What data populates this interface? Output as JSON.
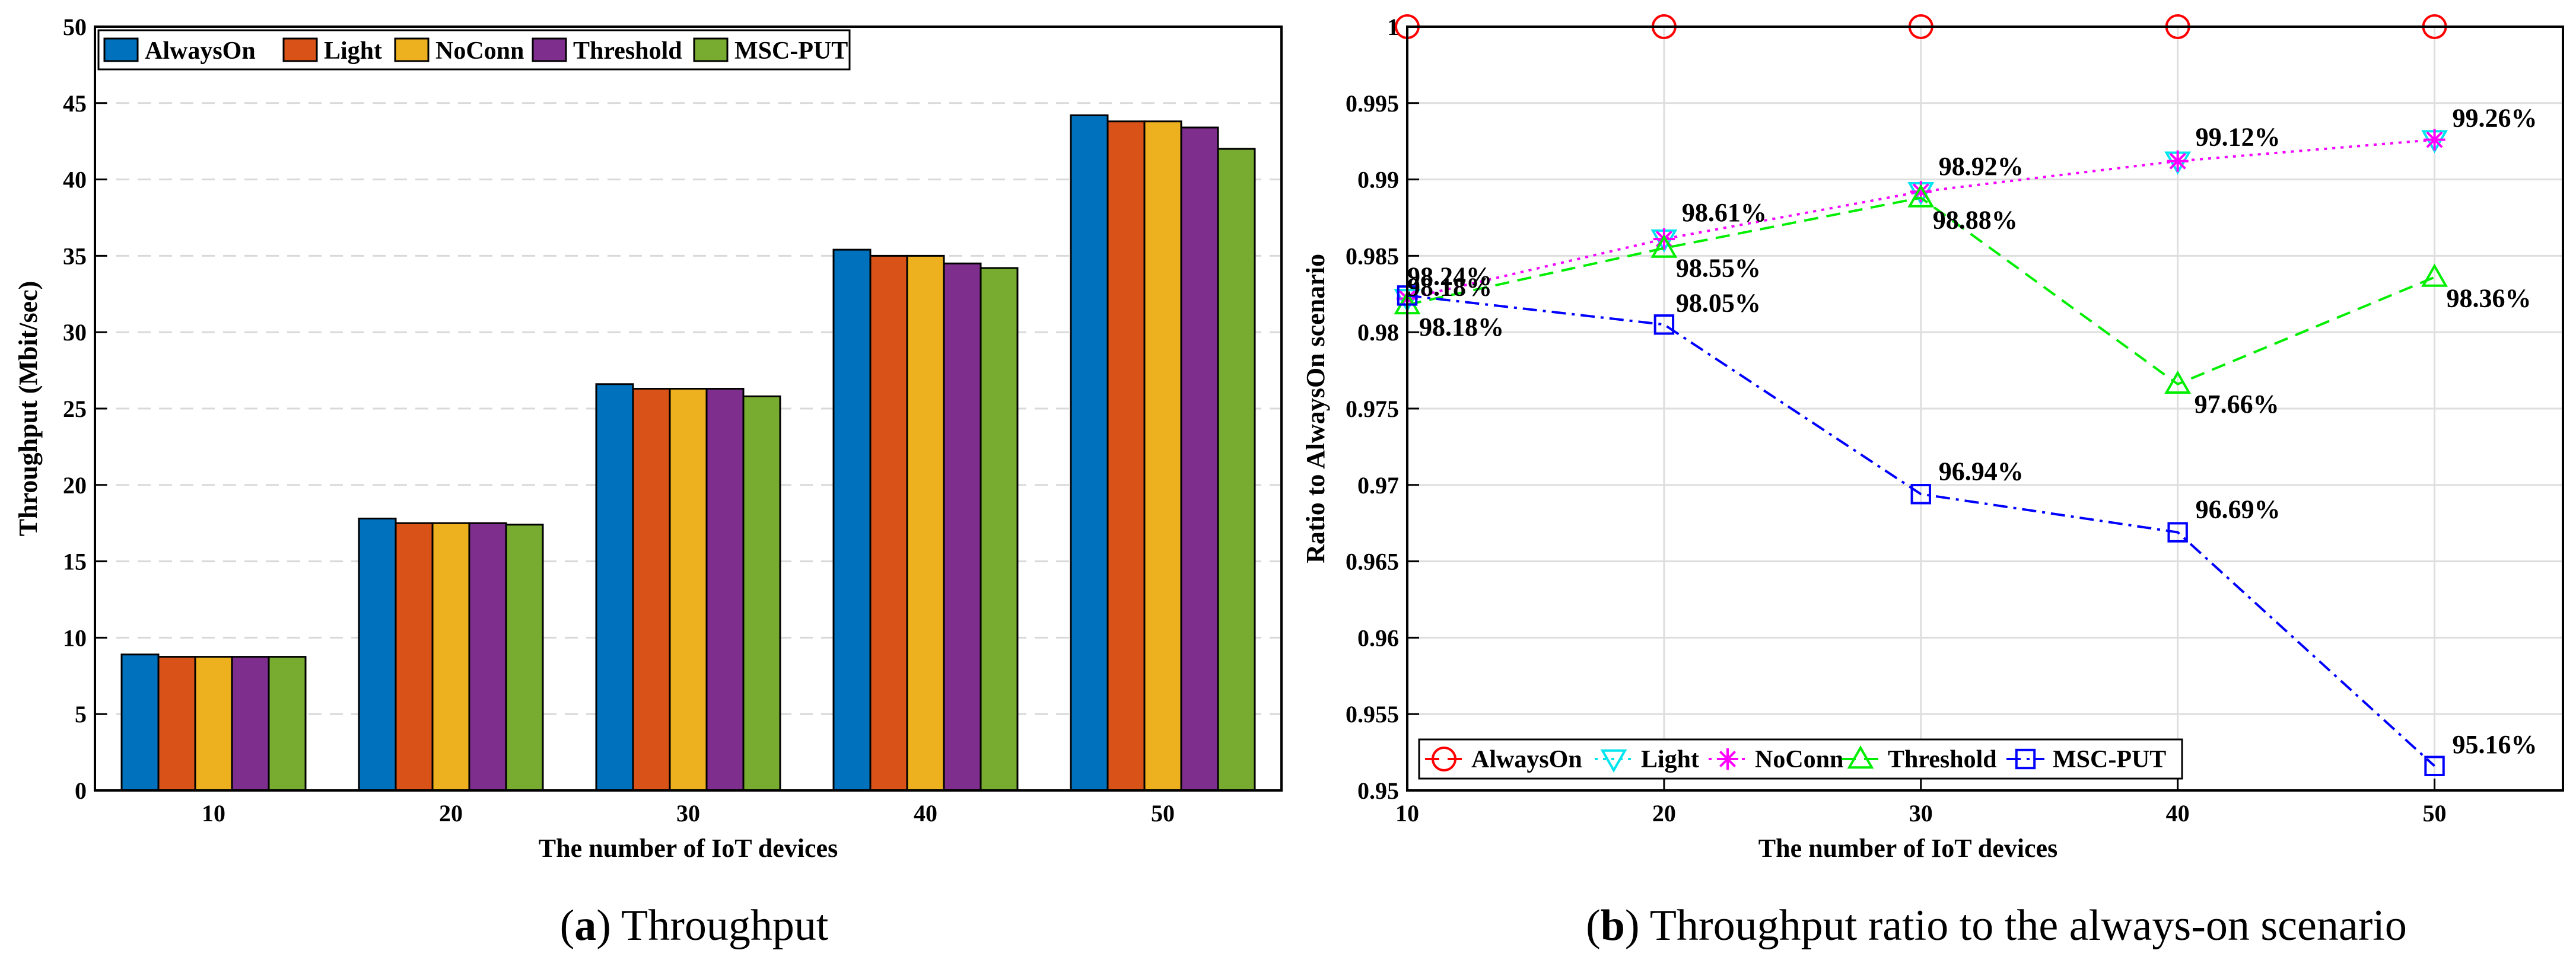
{
  "chart_data": [
    {
      "type": "bar",
      "title": "",
      "caption": {
        "prefix": "(",
        "letter": "a",
        "suffix": ") Throughput"
      },
      "xlabel": "The number of IoT devices",
      "ylabel": "Throughput (Mbit/sec)",
      "categories": [
        "10",
        "20",
        "30",
        "40",
        "50"
      ],
      "ylim": [
        0,
        50
      ],
      "yticks": [
        "0",
        "5",
        "10",
        "15",
        "20",
        "25",
        "30",
        "35",
        "40",
        "45",
        "50"
      ],
      "grid": "horizontal dashed",
      "legend_position": "top-left",
      "series": [
        {
          "name": "AlwaysOn",
          "color": "#0072BD",
          "values": [
            8.9,
            17.8,
            26.6,
            35.4,
            44.2
          ]
        },
        {
          "name": "Light",
          "color": "#D95319",
          "values": [
            8.75,
            17.5,
            26.3,
            35.0,
            43.8
          ]
        },
        {
          "name": "NoConn",
          "color": "#EDB120",
          "values": [
            8.75,
            17.5,
            26.3,
            35.0,
            43.8
          ]
        },
        {
          "name": "Threshold",
          "color": "#7E2F8E",
          "values": [
            8.75,
            17.5,
            26.3,
            34.5,
            43.4
          ]
        },
        {
          "name": "MSC-PUT",
          "color": "#77AC30",
          "values": [
            8.75,
            17.4,
            25.8,
            34.2,
            42.0
          ]
        }
      ]
    },
    {
      "type": "line",
      "title": "",
      "caption": {
        "prefix": "(",
        "letter": "b",
        "suffix": ") Throughput ratio to the always-on scenario"
      },
      "xlabel": "The number of IoT devices",
      "ylabel": "Ratio to AlwaysOn scenario",
      "x": [
        10,
        20,
        30,
        40,
        50
      ],
      "xlim": [
        10,
        55
      ],
      "xticks": [
        "10",
        "20",
        "30",
        "40",
        "50"
      ],
      "ylim": [
        0.95,
        1.0
      ],
      "yticks": [
        "0.95",
        "0.955",
        "0.96",
        "0.965",
        "0.97",
        "0.975",
        "0.98",
        "0.985",
        "0.99",
        "0.995",
        "1"
      ],
      "grid": "both",
      "legend_position": "bottom-left",
      "series": [
        {
          "name": "AlwaysOn",
          "color": "#FF0000",
          "marker": "circle",
          "line": "dashed",
          "values": [
            1.0,
            1.0,
            1.0,
            1.0,
            1.0
          ]
        },
        {
          "name": "Light",
          "color": "#00E5EE",
          "marker": "triangle-down",
          "line": "dotted",
          "values": [
            0.9822,
            0.9861,
            0.9892,
            0.9912,
            0.9926
          ]
        },
        {
          "name": "NoConn",
          "color": "#FF00FF",
          "marker": "asterisk",
          "line": "dotted",
          "values": [
            0.9822,
            0.9861,
            0.9892,
            0.9912,
            0.9926
          ]
        },
        {
          "name": "Threshold",
          "color": "#00EE00",
          "marker": "triangle-up",
          "line": "dashed",
          "values": [
            0.9818,
            0.9855,
            0.9888,
            0.9766,
            0.9836
          ]
        },
        {
          "name": "MSC-PUT",
          "color": "#0000FF",
          "marker": "square",
          "line": "dash-dot",
          "values": [
            0.9824,
            0.9805,
            0.9694,
            0.9669,
            0.9516
          ]
        }
      ],
      "annotations": [
        {
          "text": "98.24%",
          "x": 10,
          "y": 0.9824
        },
        {
          "text": "98.18%",
          "x": 10,
          "y": 0.9824
        },
        {
          "text": "98.18%",
          "x": 10,
          "y": 0.9818
        },
        {
          "text": "98.61%",
          "x": 20,
          "y": 0.9861
        },
        {
          "text": "98.55%",
          "x": 20,
          "y": 0.9855
        },
        {
          "text": "98.05%",
          "x": 20,
          "y": 0.9805
        },
        {
          "text": "98.92%",
          "x": 30,
          "y": 0.9892
        },
        {
          "text": "98.88%",
          "x": 30,
          "y": 0.9888
        },
        {
          "text": "96.94%",
          "x": 30,
          "y": 0.9694
        },
        {
          "text": "99.12%",
          "x": 40,
          "y": 0.9912
        },
        {
          "text": "97.66%",
          "x": 40,
          "y": 0.9766
        },
        {
          "text": "96.69%",
          "x": 40,
          "y": 0.9669
        },
        {
          "text": "99.26%",
          "x": 50,
          "y": 0.9926
        },
        {
          "text": "98.36%",
          "x": 50,
          "y": 0.9836
        },
        {
          "text": "95.16%",
          "x": 50,
          "y": 0.9516
        }
      ]
    }
  ]
}
